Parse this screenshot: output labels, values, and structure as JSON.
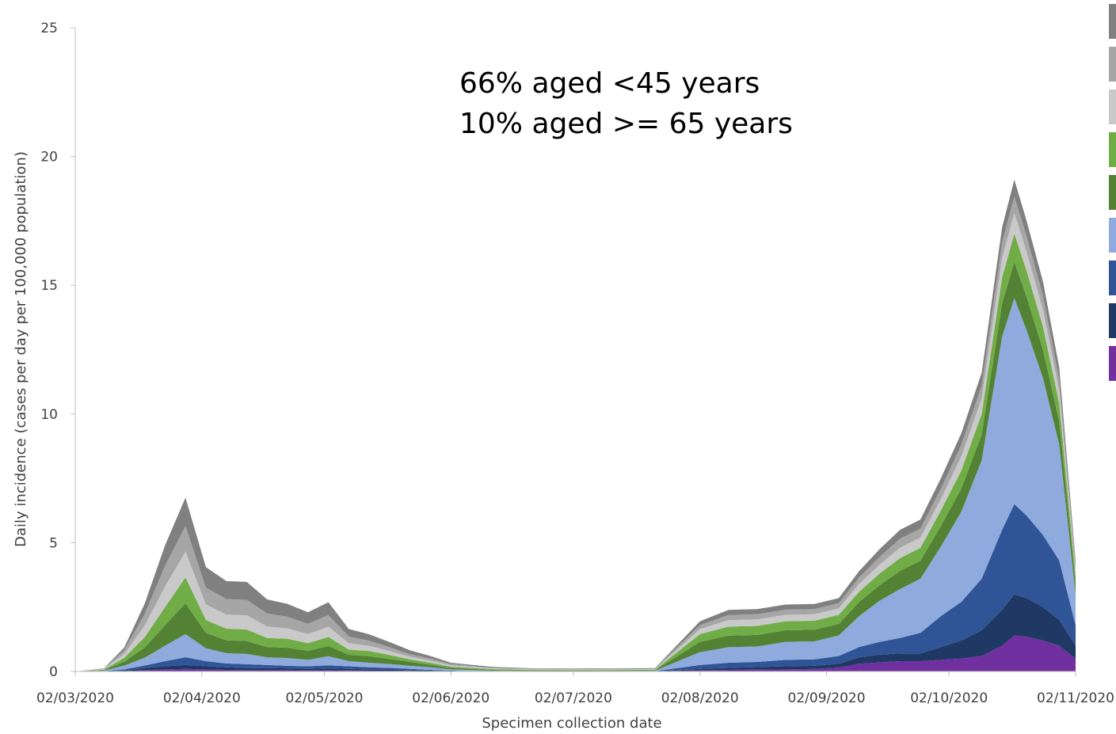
{
  "chart_data": {
    "type": "area",
    "stacked": true,
    "xlabel": "Specimen collection date",
    "ylabel": "Daily incidence (cases per day per 100,000 population)",
    "ylim": [
      0,
      25
    ],
    "yticks": [
      0,
      5,
      10,
      15,
      20,
      25
    ],
    "xlim": [
      "2020-03-02",
      "2020-11-02"
    ],
    "xticks": [
      {
        "date": "2020-03-02",
        "label": "02/03/2020"
      },
      {
        "date": "2020-04-02",
        "label": "02/04/2020"
      },
      {
        "date": "2020-05-02",
        "label": "02/05/2020"
      },
      {
        "date": "2020-06-02",
        "label": "02/06/2020"
      },
      {
        "date": "2020-07-02",
        "label": "02/07/2020"
      },
      {
        "date": "2020-08-02",
        "label": "02/08/2020"
      },
      {
        "date": "2020-09-02",
        "label": "02/09/2020"
      },
      {
        "date": "2020-10-02",
        "label": "02/10/2020"
      },
      {
        "date": "2020-11-02",
        "label": "02/11/2020"
      }
    ],
    "annotations": [
      "66% aged <45 years",
      "10% aged >= 65 years"
    ],
    "legend_position": "right",
    "x": [
      "2020-03-02",
      "2020-03-09",
      "2020-03-14",
      "2020-03-19",
      "2020-03-24",
      "2020-03-29",
      "2020-04-03",
      "2020-04-08",
      "2020-04-13",
      "2020-04-18",
      "2020-04-23",
      "2020-04-28",
      "2020-05-03",
      "2020-05-08",
      "2020-05-13",
      "2020-05-18",
      "2020-05-23",
      "2020-05-28",
      "2020-06-02",
      "2020-06-12",
      "2020-06-22",
      "2020-07-02",
      "2020-07-12",
      "2020-07-22",
      "2020-08-02",
      "2020-08-09",
      "2020-08-16",
      "2020-08-23",
      "2020-08-30",
      "2020-09-05",
      "2020-09-10",
      "2020-09-15",
      "2020-09-20",
      "2020-09-25",
      "2020-09-30",
      "2020-10-05",
      "2020-10-10",
      "2020-10-15",
      "2020-10-18",
      "2020-10-21",
      "2020-10-25",
      "2020-10-29",
      "2020-11-02"
    ],
    "series": [
      {
        "color": "#7030a0",
        "values": [
          0,
          0,
          0.01,
          0.05,
          0.08,
          0.1,
          0.08,
          0.06,
          0.05,
          0.05,
          0.05,
          0.04,
          0.05,
          0.04,
          0.03,
          0.03,
          0.02,
          0.01,
          0,
          0,
          0,
          0,
          0,
          0,
          0.05,
          0.06,
          0.07,
          0.08,
          0.1,
          0.15,
          0.3,
          0.35,
          0.4,
          0.4,
          0.45,
          0.5,
          0.6,
          1.0,
          1.4,
          1.35,
          1.2,
          1.0,
          0.5
        ]
      },
      {
        "color": "#1f3864",
        "values": [
          0,
          0,
          0.02,
          0.08,
          0.12,
          0.15,
          0.12,
          0.1,
          0.08,
          0.08,
          0.07,
          0.06,
          0.07,
          0.06,
          0.05,
          0.05,
          0.03,
          0.02,
          0.01,
          0,
          0,
          0,
          0,
          0,
          0.05,
          0.08,
          0.1,
          0.12,
          0.12,
          0.15,
          0.25,
          0.3,
          0.3,
          0.3,
          0.5,
          0.7,
          1.0,
          1.4,
          1.6,
          1.5,
          1.3,
          1.0,
          0.5
        ]
      },
      {
        "color": "#2f5597",
        "values": [
          0,
          0.01,
          0.05,
          0.1,
          0.2,
          0.3,
          0.2,
          0.15,
          0.15,
          0.12,
          0.1,
          0.1,
          0.12,
          0.1,
          0.08,
          0.06,
          0.05,
          0.03,
          0.02,
          0,
          0,
          0,
          0,
          0.01,
          0.15,
          0.2,
          0.2,
          0.25,
          0.25,
          0.3,
          0.4,
          0.5,
          0.6,
          0.8,
          1.2,
          1.5,
          2.0,
          3.1,
          3.5,
          3.2,
          2.8,
          2.3,
          0.8
        ]
      },
      {
        "color": "#8faadc",
        "values": [
          0,
          0.02,
          0.15,
          0.3,
          0.6,
          0.9,
          0.5,
          0.4,
          0.4,
          0.3,
          0.3,
          0.25,
          0.35,
          0.2,
          0.18,
          0.15,
          0.12,
          0.1,
          0.05,
          0.03,
          0.02,
          0.01,
          0.02,
          0.02,
          0.5,
          0.6,
          0.6,
          0.7,
          0.7,
          0.8,
          1.2,
          1.6,
          1.9,
          2.1,
          2.7,
          3.5,
          4.6,
          7.5,
          8.0,
          7.2,
          6.1,
          4.5,
          1.2
        ]
      },
      {
        "color": "#548235",
        "values": [
          0,
          0.02,
          0.15,
          0.4,
          0.8,
          1.2,
          0.6,
          0.5,
          0.5,
          0.4,
          0.4,
          0.35,
          0.4,
          0.25,
          0.25,
          0.2,
          0.15,
          0.1,
          0.06,
          0.03,
          0.02,
          0.02,
          0.02,
          0.02,
          0.4,
          0.45,
          0.45,
          0.45,
          0.45,
          0.45,
          0.55,
          0.6,
          0.7,
          0.7,
          0.8,
          0.9,
          1.0,
          1.3,
          1.4,
          1.3,
          1.1,
          0.9,
          0.4
        ]
      },
      {
        "color": "#70ad47",
        "values": [
          0,
          0.02,
          0.15,
          0.4,
          0.7,
          1.0,
          0.5,
          0.45,
          0.45,
          0.35,
          0.35,
          0.3,
          0.35,
          0.2,
          0.2,
          0.15,
          0.1,
          0.08,
          0.05,
          0.03,
          0.02,
          0.02,
          0.02,
          0.02,
          0.3,
          0.35,
          0.35,
          0.35,
          0.35,
          0.35,
          0.4,
          0.45,
          0.5,
          0.5,
          0.6,
          0.7,
          0.8,
          1.0,
          1.1,
          1.0,
          0.9,
          0.7,
          0.3
        ]
      },
      {
        "color": "#c9c9c9",
        "values": [
          0,
          0.02,
          0.15,
          0.45,
          0.8,
          1.0,
          0.6,
          0.55,
          0.55,
          0.45,
          0.4,
          0.35,
          0.4,
          0.25,
          0.2,
          0.15,
          0.1,
          0.08,
          0.05,
          0.03,
          0.02,
          0.02,
          0.02,
          0.02,
          0.2,
          0.25,
          0.25,
          0.25,
          0.25,
          0.25,
          0.3,
          0.35,
          0.4,
          0.4,
          0.45,
          0.55,
          0.6,
          0.75,
          0.8,
          0.75,
          0.65,
          0.5,
          0.2
        ]
      },
      {
        "color": "#a6a6a6",
        "values": [
          0,
          0.02,
          0.15,
          0.45,
          0.8,
          1.0,
          0.65,
          0.6,
          0.6,
          0.5,
          0.45,
          0.4,
          0.45,
          0.25,
          0.2,
          0.15,
          0.1,
          0.08,
          0.05,
          0.03,
          0.02,
          0.02,
          0.02,
          0.02,
          0.15,
          0.2,
          0.2,
          0.2,
          0.2,
          0.2,
          0.25,
          0.3,
          0.35,
          0.35,
          0.4,
          0.45,
          0.5,
          0.6,
          0.65,
          0.6,
          0.55,
          0.45,
          0.2
        ]
      },
      {
        "color": "#808080",
        "values": [
          0,
          0.01,
          0.1,
          0.4,
          0.8,
          1.1,
          0.8,
          0.7,
          0.7,
          0.55,
          0.5,
          0.45,
          0.5,
          0.3,
          0.25,
          0.2,
          0.15,
          0.1,
          0.05,
          0.03,
          0.02,
          0.02,
          0.02,
          0.02,
          0.15,
          0.2,
          0.2,
          0.2,
          0.2,
          0.2,
          0.25,
          0.3,
          0.35,
          0.35,
          0.4,
          0.45,
          0.5,
          0.6,
          0.65,
          0.6,
          0.55,
          0.45,
          0.2
        ]
      }
    ]
  }
}
